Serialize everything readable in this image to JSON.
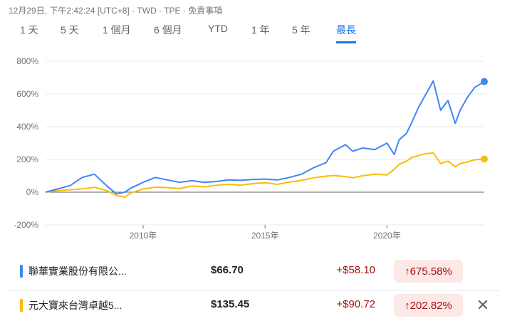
{
  "header": {
    "datetime": "12月29日, 下午2:42:24 [UTC+8]",
    "currency": "TWD",
    "exchange": "TPE",
    "disclaimer": "免責事項",
    "separator": " · "
  },
  "tabs": [
    "1 天",
    "5 天",
    "1 個月",
    "6 個月",
    "YTD",
    "1 年",
    "5 年",
    "最長"
  ],
  "active_tab": "最長",
  "colors": {
    "series1": "#4285f4",
    "series2": "#fbbc04",
    "accent": "#1a73e8",
    "negative": "#a50e0e",
    "negative_bg": "#fce8e6"
  },
  "chart_data": {
    "type": "line",
    "title": "",
    "xlabel": "",
    "ylabel": "",
    "y_unit": "%",
    "ylim": [
      -200,
      800
    ],
    "xlim": [
      2006.0,
      2023.99
    ],
    "y_ticks": [
      "800%",
      "600%",
      "400%",
      "200%",
      "0%",
      "-200%"
    ],
    "y_tick_values": [
      800,
      600,
      400,
      200,
      0,
      -200
    ],
    "x_ticks": [
      "2010年",
      "2015年",
      "2020年"
    ],
    "x_tick_values": [
      2010,
      2015,
      2020
    ],
    "grid": true,
    "x": [
      2006.0,
      2006.5,
      2007.0,
      2007.5,
      2008.0,
      2008.5,
      2008.9,
      2009.25,
      2009.5,
      2010.0,
      2010.5,
      2011.0,
      2011.5,
      2012.0,
      2012.5,
      2013.0,
      2013.5,
      2014.0,
      2014.5,
      2015.0,
      2015.5,
      2016.0,
      2016.5,
      2017.0,
      2017.5,
      2017.8,
      2018.3,
      2018.6,
      2019.0,
      2019.5,
      2020.0,
      2020.3,
      2020.5,
      2020.8,
      2021.0,
      2021.3,
      2021.6,
      2021.9,
      2022.2,
      2022.5,
      2022.8,
      2023.0,
      2023.3,
      2023.6,
      2023.99
    ],
    "series": [
      {
        "name": "聯華實業股份有限公...",
        "values": [
          0,
          20,
          40,
          90,
          110,
          40,
          -10,
          0,
          25,
          60,
          90,
          75,
          60,
          70,
          60,
          65,
          75,
          72,
          78,
          80,
          75,
          90,
          110,
          150,
          180,
          250,
          290,
          250,
          270,
          260,
          300,
          230,
          320,
          360,
          420,
          520,
          600,
          680,
          500,
          560,
          420,
          500,
          580,
          640,
          675.58
        ]
      },
      {
        "name": "元大寶來台灣卓越5...",
        "values": [
          0,
          10,
          15,
          20,
          30,
          10,
          -20,
          -30,
          -5,
          20,
          30,
          28,
          22,
          38,
          32,
          42,
          48,
          43,
          52,
          58,
          48,
          62,
          72,
          88,
          98,
          102,
          95,
          88,
          100,
          110,
          105,
          140,
          170,
          190,
          210,
          225,
          235,
          240,
          175,
          190,
          155,
          175,
          185,
          198,
          202.82
        ]
      }
    ]
  },
  "rows": [
    {
      "name": "聯華實業股份有限公...",
      "price": "$66.70",
      "change": "+$58.10",
      "pct": "675.58%",
      "arrow": "↑"
    },
    {
      "name": "元大寶來台灣卓越5...",
      "price": "$135.45",
      "change": "+$90.72",
      "pct": "202.82%",
      "arrow": "↑",
      "remove_icon": "close-icon"
    }
  ]
}
